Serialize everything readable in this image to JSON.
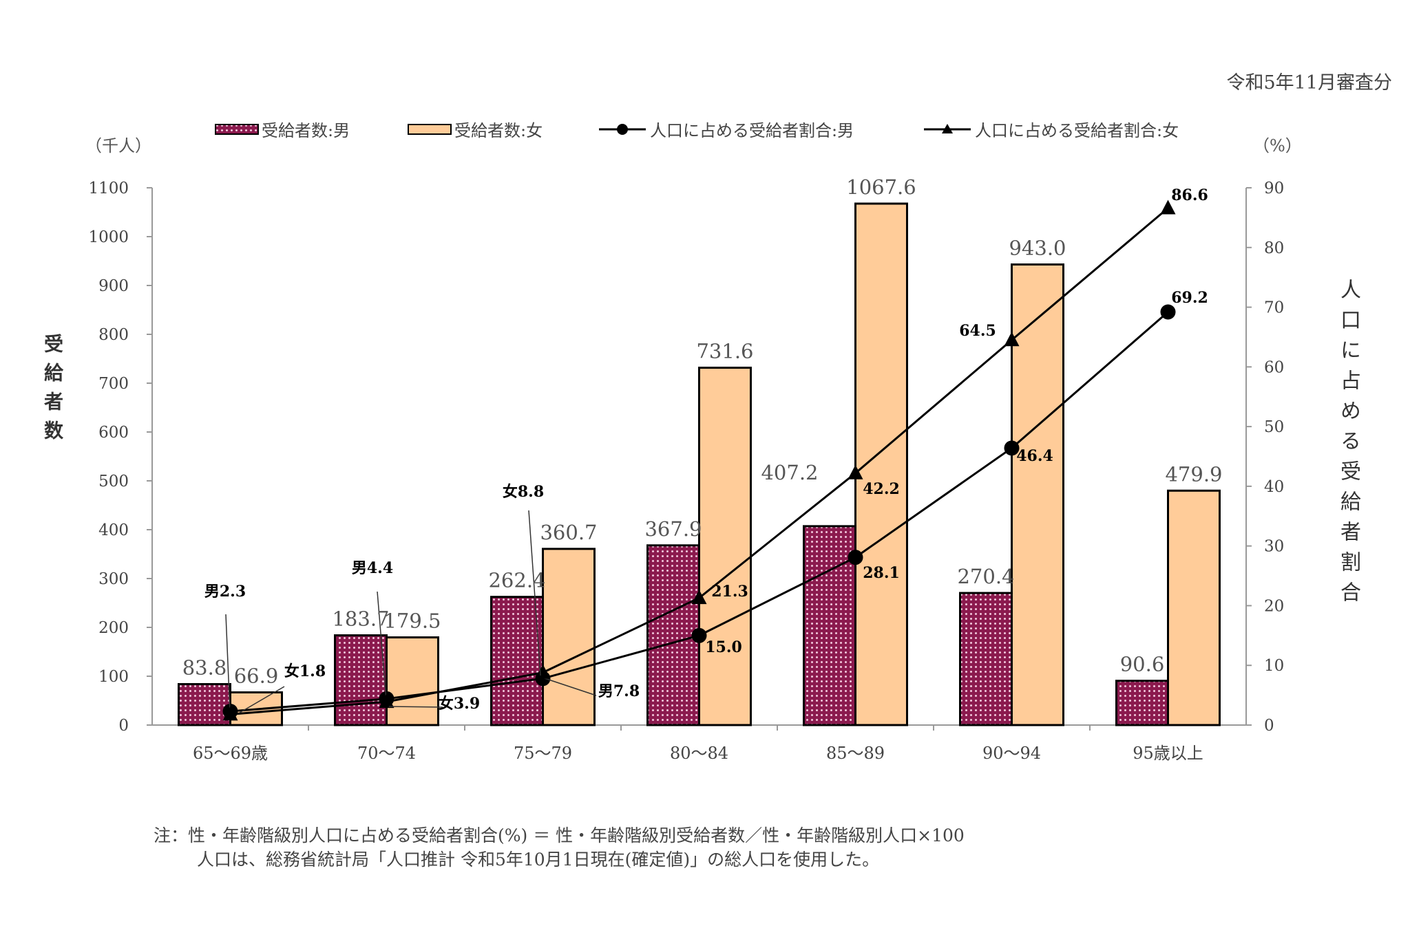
{
  "header": {
    "survey_period": "令和5年11月審査分"
  },
  "units": {
    "left": "（千人）",
    "right": "（%）"
  },
  "colors": {
    "male_bar": "#8B1A4E",
    "female_bar": "#FFCC99",
    "line": "#000000"
  },
  "chart_data": {
    "type": "bar+line",
    "categories": [
      "65～69歳",
      "70～74",
      "75～79",
      "80～84",
      "85～89",
      "90～94",
      "95歳以上"
    ],
    "ylabel": "受給者数",
    "y2label": "人口に占める受給者割合",
    "ylim": [
      0,
      1100
    ],
    "yticks": [
      0,
      100,
      200,
      300,
      400,
      500,
      600,
      700,
      800,
      900,
      1000,
      1100
    ],
    "y2lim": [
      0,
      90
    ],
    "y2ticks": [
      0,
      10,
      20,
      30,
      40,
      50,
      60,
      70,
      80,
      90
    ],
    "legend_position": "top",
    "series": [
      {
        "name": "受給者数:男",
        "type": "bar",
        "axis": "left",
        "values": [
          83.8,
          183.7,
          262.4,
          367.9,
          407.2,
          270.4,
          90.6
        ],
        "labels": [
          "83.8",
          "183.7",
          "262.4",
          "367.9",
          "407.2",
          "270.4",
          "90.6"
        ]
      },
      {
        "name": "受給者数:女",
        "type": "bar",
        "axis": "left",
        "values": [
          66.9,
          179.5,
          360.7,
          731.6,
          1067.6,
          943.0,
          479.9
        ],
        "labels": [
          "66.9",
          "179.5",
          "360.7",
          "731.6",
          "1067.6",
          "943.0",
          "479.9"
        ]
      },
      {
        "name": "人口に占める受給者割合:男",
        "type": "line",
        "marker": "circle",
        "axis": "right",
        "values": [
          2.3,
          4.4,
          7.8,
          15.0,
          28.1,
          46.4,
          69.2
        ],
        "labels": [
          "男2.3",
          "男4.4",
          "男7.8",
          "15.0",
          "28.1",
          "46.4",
          "69.2"
        ]
      },
      {
        "name": "人口に占める受給者割合:女",
        "type": "line",
        "marker": "triangle",
        "axis": "right",
        "values": [
          1.8,
          3.9,
          8.8,
          21.3,
          42.2,
          64.5,
          86.6
        ],
        "labels": [
          "女1.8",
          "女3.9",
          "女8.8",
          "21.3",
          "42.2",
          "64.5",
          "86.6"
        ]
      }
    ]
  },
  "footnote": {
    "line1": "注：性・年齢階級別人口に占める受給者割合(%) ＝ 性・年齢階級別受給者数／性・年齢階級別人口×100",
    "line2": "人口は、総務省統計局「人口推計 令和5年10月1日現在(確定値)」の総人口を使用した。"
  }
}
